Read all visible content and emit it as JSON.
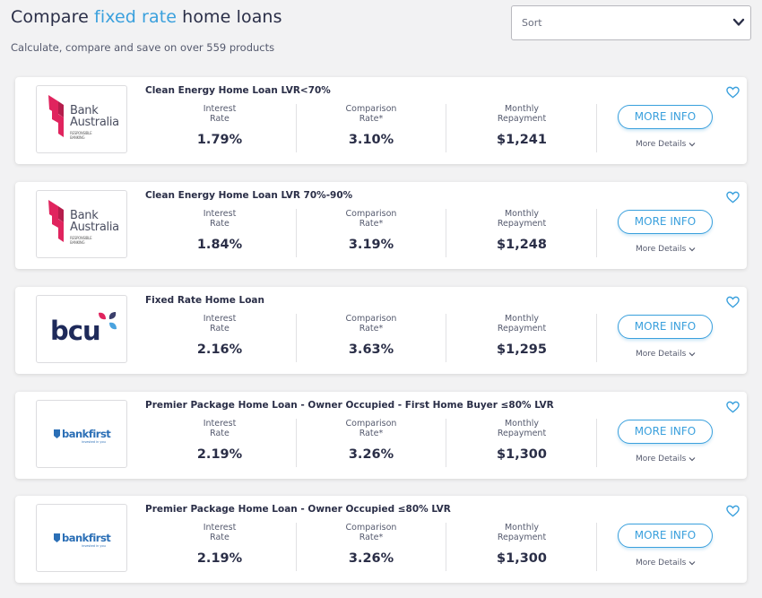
{
  "header": {
    "title_pre": "Compare ",
    "title_highlight": "fixed rate",
    "title_post": " home loans",
    "subtitle": "Calculate, compare and save on over 559 products",
    "sort_label": "Sort"
  },
  "labels": {
    "interest_line1": "Interest",
    "interest_line2": "Rate",
    "comparison_line1": "Comparison",
    "comparison_line2": "Rate*",
    "repayment_line1": "Monthly",
    "repayment_line2": "Repayment",
    "more_info": "MORE INFO",
    "more_details": "More Details"
  },
  "logos": {
    "bank_australia": {
      "line1": "Bank",
      "line2": "Australia",
      "tag1": "RESPONSIBLE",
      "tag2": "BANKING"
    },
    "bcu": {
      "text": "bcu"
    },
    "bankfirst": {
      "text": "bankfirst",
      "tag": "invested in you"
    }
  },
  "loans": [
    {
      "name": "Clean Energy Home Loan LVR<70%",
      "interest_rate": "1.79%",
      "comparison_rate": "3.10%",
      "monthly_repayment": "$1,241"
    },
    {
      "name": "Clean Energy Home Loan LVR 70%-90%",
      "interest_rate": "1.84%",
      "comparison_rate": "3.19%",
      "monthly_repayment": "$1,248"
    },
    {
      "name": "Fixed Rate Home Loan",
      "interest_rate": "2.16%",
      "comparison_rate": "3.63%",
      "monthly_repayment": "$1,295"
    },
    {
      "name": "Premier Package Home Loan - Owner Occupied - First Home Buyer ≤80% LVR",
      "interest_rate": "2.19%",
      "comparison_rate": "3.26%",
      "monthly_repayment": "$1,300"
    },
    {
      "name": "Premier Package Home Loan - Owner Occupied ≤80% LVR",
      "interest_rate": "2.19%",
      "comparison_rate": "3.26%",
      "monthly_repayment": "$1,300"
    }
  ],
  "colors": {
    "accent": "#3aa0dd",
    "text_dark": "#2a2e47",
    "bank_australia_pink": "#e0245e",
    "bcu_navy": "#1e2a5a",
    "bcu_pink": "#e0245e",
    "bcu_blue": "#4aa3df",
    "bankfirst_blue": "#2b6fb6"
  }
}
